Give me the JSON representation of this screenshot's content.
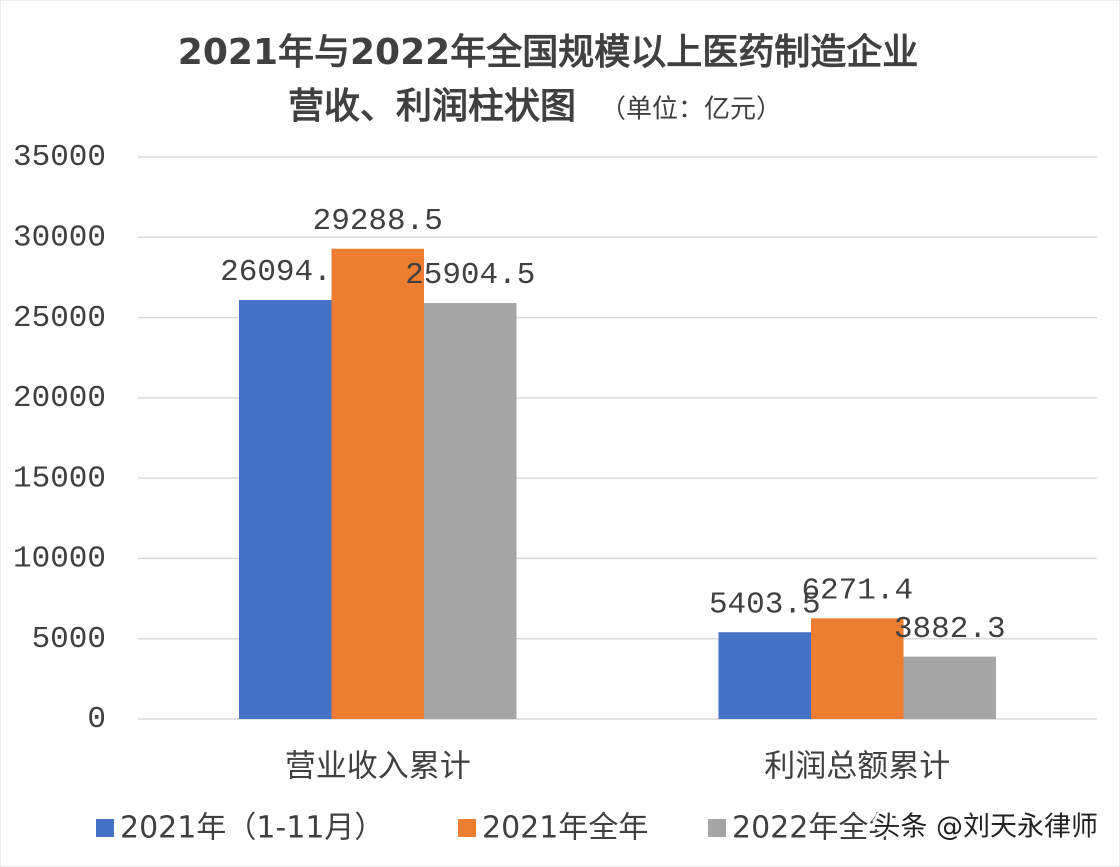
{
  "chart_data": {
    "type": "bar",
    "title": "2021年与2022年全国规模以上医药制造企业",
    "title_line2": "营收、利润柱状图",
    "subtitle": "（单位：亿元）",
    "categories": [
      "营业收入累计",
      "利润总额累计"
    ],
    "series": [
      {
        "name": "2021年（1-11月）",
        "color": "#4472c4",
        "values": [
          26094.6,
          5403.5
        ]
      },
      {
        "name": "2021年全年",
        "color": "#ed7d31",
        "values": [
          29288.5,
          6271.4
        ]
      },
      {
        "name": "2022年全年",
        "color": "#a5a5a5",
        "values": [
          25904.5,
          3882.3
        ]
      }
    ],
    "ylim": [
      0,
      35000
    ],
    "yticks": [
      0,
      5000,
      10000,
      15000,
      20000,
      25000,
      30000,
      35000
    ],
    "grid": true,
    "legend": "bottom"
  },
  "watermark": "头条 @刘天永律师"
}
